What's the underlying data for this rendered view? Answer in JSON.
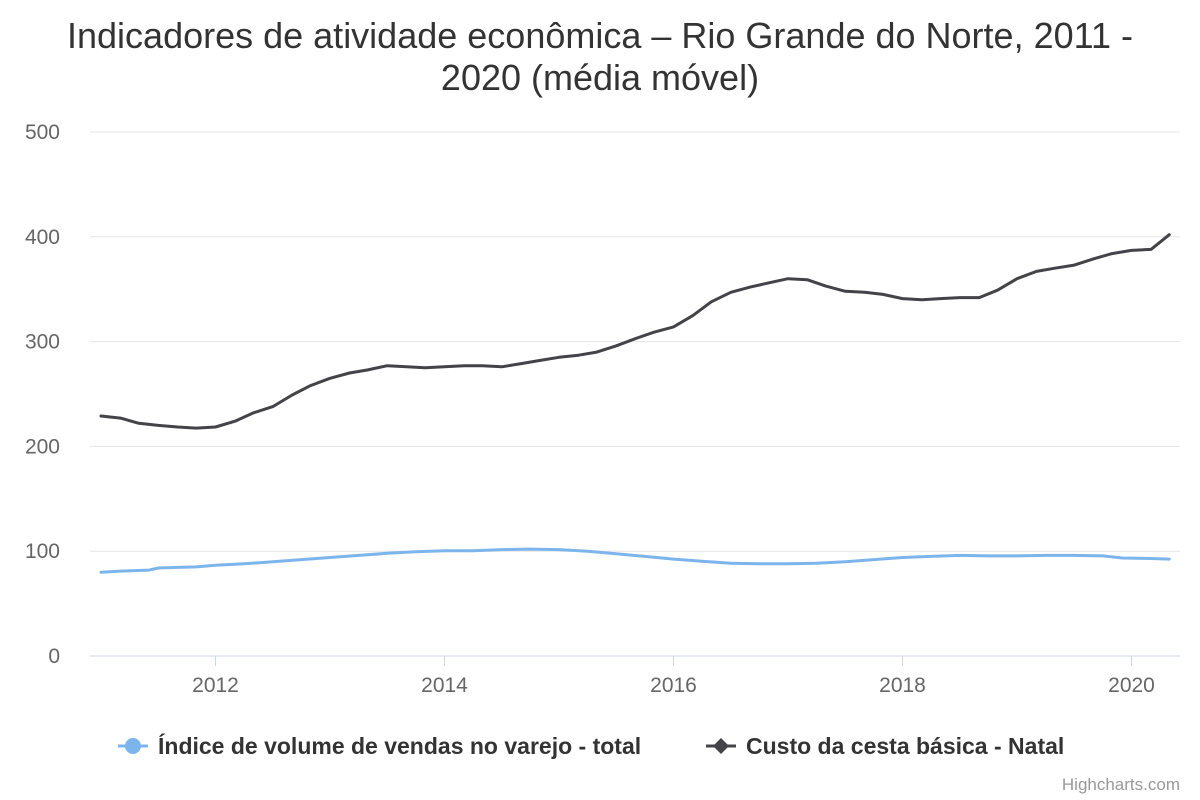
{
  "chart_data": {
    "type": "line",
    "title_lines": [
      "Indicadores de atividade econômica – Rio Grande do Norte, 2011 -",
      "2020 (média móvel)"
    ],
    "xlabel": "",
    "ylabel": "",
    "xlim": [
      2011.0,
      2020.75
    ],
    "ylim": [
      0,
      500
    ],
    "y_ticks": [
      "0",
      "100",
      "200",
      "300",
      "400",
      "500"
    ],
    "x_ticks": [
      "2012",
      "2014",
      "2016",
      "2018",
      "2020"
    ],
    "grid": true,
    "legend_position": "bottom-center",
    "series": [
      {
        "name": "Índice de volume de vendas no varejo - total",
        "color": "#7cb5ec",
        "marker": "circle",
        "x": [
          2011.0,
          2011.17,
          2011.42,
          2011.5,
          2011.67,
          2011.83,
          2012.0,
          2012.25,
          2012.5,
          2012.75,
          2013.0,
          2013.25,
          2013.5,
          2013.75,
          2014.0,
          2014.25,
          2014.5,
          2014.75,
          2015.0,
          2015.25,
          2015.5,
          2015.75,
          2016.0,
          2016.25,
          2016.5,
          2016.75,
          2017.0,
          2017.25,
          2017.5,
          2017.75,
          2018.0,
          2018.25,
          2018.5,
          2018.75,
          2019.0,
          2019.25,
          2019.5,
          2019.75,
          2019.92,
          2020.17,
          2020.33
        ],
        "values": [
          80,
          81,
          82,
          84,
          84.5,
          85,
          86.5,
          88,
          90,
          92,
          94,
          96,
          98,
          99.5,
          100.5,
          100.5,
          101.5,
          102,
          101.5,
          100,
          97.5,
          95,
          92.5,
          90.5,
          88.5,
          88,
          88,
          88.5,
          90,
          92,
          94,
          95,
          96,
          95.5,
          95.5,
          96,
          96,
          95.5,
          93.5,
          93,
          92.5
        ]
      },
      {
        "name": "Custo da cesta básica - Natal",
        "color": "#434348",
        "marker": "diamond",
        "x": [
          2011.0,
          2011.17,
          2011.33,
          2011.5,
          2011.67,
          2011.83,
          2012.0,
          2012.17,
          2012.33,
          2012.5,
          2012.67,
          2012.83,
          2013.0,
          2013.17,
          2013.33,
          2013.5,
          2013.67,
          2013.83,
          2014.0,
          2014.17,
          2014.33,
          2014.5,
          2014.67,
          2014.83,
          2015.0,
          2015.17,
          2015.33,
          2015.5,
          2015.67,
          2015.83,
          2016.0,
          2016.17,
          2016.33,
          2016.5,
          2016.67,
          2016.83,
          2017.0,
          2017.17,
          2017.33,
          2017.5,
          2017.67,
          2017.83,
          2018.0,
          2018.17,
          2018.33,
          2018.5,
          2018.67,
          2018.83,
          2019.0,
          2019.17,
          2019.33,
          2019.5,
          2019.67,
          2019.83,
          2020.0,
          2020.17,
          2020.33
        ],
        "values": [
          229,
          227,
          222,
          220,
          218.5,
          217.5,
          218.5,
          224,
          232,
          238,
          249,
          258,
          265,
          270,
          273,
          277,
          276,
          275,
          276,
          277,
          277,
          276,
          279,
          282,
          285,
          287,
          290,
          296,
          303,
          309,
          314,
          325,
          338,
          347,
          352,
          356,
          360,
          359,
          353,
          348,
          347,
          345,
          341,
          340,
          341,
          342,
          342,
          349,
          360,
          367,
          370,
          373,
          379,
          384,
          387,
          388,
          402
        ]
      }
    ]
  },
  "credits": "Highcharts.com"
}
